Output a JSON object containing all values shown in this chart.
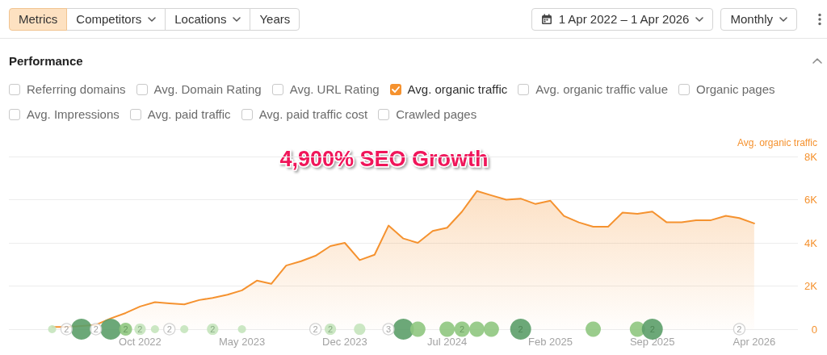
{
  "chart_data": [
    {
      "type": "other",
      "annotations": [
        "Metrics",
        "Competitors",
        "Locations",
        "Years",
        "1 Apr 2022 – 1 Apr 2026",
        "Monthly"
      ]
    },
    {
      "type": "area",
      "title": "Performance",
      "ylabel": "Avg. organic traffic",
      "annotations": [
        "4,900% SEO Growth",
        {
          "text": "2",
          "x": "2022-05",
          "y": 0
        },
        {
          "text": "2",
          "x": "2022-07",
          "y": 0
        },
        {
          "text": "2",
          "x": "2022-09",
          "y": 0
        },
        {
          "text": "2",
          "x": "2022-10",
          "y": 0
        },
        {
          "text": "2",
          "x": "2022-12",
          "y": 0
        },
        {
          "text": "2",
          "x": "2023-03",
          "y": 0
        },
        {
          "text": "2",
          "x": "2023-10",
          "y": 0
        },
        {
          "text": "2",
          "x": "2023-11",
          "y": 0
        },
        {
          "text": "3",
          "x": "2024-03",
          "y": 0
        },
        {
          "text": "2",
          "x": "2024-08",
          "y": 0
        },
        {
          "text": "2",
          "x": "2024-12",
          "y": 0
        },
        {
          "text": "2",
          "x": "2025-09",
          "y": 0
        },
        {
          "text": "2",
          "x": "2026-03",
          "y": 0
        }
      ],
      "x": [
        "2022-04",
        "2022-05",
        "2022-06",
        "2022-07",
        "2022-08",
        "2022-09",
        "2022-10",
        "2022-11",
        "2022-12",
        "2023-01",
        "2023-02",
        "2023-03",
        "2023-04",
        "2023-05",
        "2023-06",
        "2023-07",
        "2023-08",
        "2023-09",
        "2023-10",
        "2023-11",
        "2023-12",
        "2024-01",
        "2024-02",
        "2024-03",
        "2024-04",
        "2024-05",
        "2024-06",
        "2024-07",
        "2024-08",
        "2024-09",
        "2024-10",
        "2024-11",
        "2024-12",
        "2025-01",
        "2025-02",
        "2025-03",
        "2025-04",
        "2025-05",
        "2025-06",
        "2025-07",
        "2025-08",
        "2025-09",
        "2025-10",
        "2025-11",
        "2025-12",
        "2026-01",
        "2026-02",
        "2026-03",
        "2026-04"
      ],
      "series": [
        {
          "name": "Referring domains",
          "values": [
            null,
            null,
            null,
            null,
            null,
            null,
            null,
            null,
            null,
            null,
            null,
            null,
            null,
            null,
            null,
            null,
            null,
            null,
            null,
            null,
            null,
            null,
            null,
            null,
            null,
            null,
            null,
            null,
            null,
            null,
            null,
            null,
            null,
            null,
            null,
            null,
            null,
            null,
            null,
            null,
            null,
            null,
            null,
            null,
            null,
            null,
            null,
            null,
            null
          ]
        },
        {
          "name": "Avg. Domain Rating",
          "values": [
            null,
            null,
            null,
            null,
            null,
            null,
            null,
            null,
            null,
            null,
            null,
            null,
            null,
            null,
            null,
            null,
            null,
            null,
            null,
            null,
            null,
            null,
            null,
            null,
            null,
            null,
            null,
            null,
            null,
            null,
            null,
            null,
            null,
            null,
            null,
            null,
            null,
            null,
            null,
            null,
            null,
            null,
            null,
            null,
            null,
            null,
            null,
            null,
            null
          ]
        },
        {
          "name": "Avg. URL Rating",
          "values": [
            null,
            null,
            null,
            null,
            null,
            null,
            null,
            null,
            null,
            null,
            null,
            null,
            null,
            null,
            null,
            null,
            null,
            null,
            null,
            null,
            null,
            null,
            null,
            null,
            null,
            null,
            null,
            null,
            null,
            null,
            null,
            null,
            null,
            null,
            null,
            null,
            null,
            null,
            null,
            null,
            null,
            null,
            null,
            null,
            null,
            null,
            null,
            null,
            null
          ]
        },
        {
          "name": "Avg. organic traffic",
          "color": "#f5922f",
          "values": [
            100,
            100,
            150,
            200,
            500,
            750,
            1050,
            1250,
            1200,
            1150,
            1350,
            1450,
            1600,
            1800,
            2250,
            2100,
            2950,
            3150,
            3400,
            3850,
            4000,
            3200,
            3450,
            4800,
            4200,
            4000,
            4550,
            4700,
            5450,
            6400,
            6200,
            6000,
            6050,
            5800,
            5950,
            5250,
            4950,
            4750,
            4750,
            5400,
            5350,
            5450,
            4950,
            4950,
            5050,
            5050,
            5250,
            5150,
            4900
          ]
        },
        {
          "name": "Avg. organic traffic value",
          "values": [
            null,
            null,
            null,
            null,
            null,
            null,
            null,
            null,
            null,
            null,
            null,
            null,
            null,
            null,
            null,
            null,
            null,
            null,
            null,
            null,
            null,
            null,
            null,
            null,
            null,
            null,
            null,
            null,
            null,
            null,
            null,
            null,
            null,
            null,
            null,
            null,
            null,
            null,
            null,
            null,
            null,
            null,
            null,
            null,
            null,
            null,
            null,
            null,
            null
          ]
        },
        {
          "name": "Organic pages",
          "values": [
            null,
            null,
            null,
            null,
            null,
            null,
            null,
            null,
            null,
            null,
            null,
            null,
            null,
            null,
            null,
            null,
            null,
            null,
            null,
            null,
            null,
            null,
            null,
            null,
            null,
            null,
            null,
            null,
            null,
            null,
            null,
            null,
            null,
            null,
            null,
            null,
            null,
            null,
            null,
            null,
            null,
            null,
            null,
            null,
            null,
            null,
            null,
            null,
            null
          ]
        },
        {
          "name": "Avg. Impressions",
          "values": [
            null,
            null,
            null,
            null,
            null,
            null,
            null,
            null,
            null,
            null,
            null,
            null,
            null,
            null,
            null,
            null,
            null,
            null,
            null,
            null,
            null,
            null,
            null,
            null,
            null,
            null,
            null,
            null,
            null,
            null,
            null,
            null,
            null,
            null,
            null,
            null,
            null,
            null,
            null,
            null,
            null,
            null,
            null,
            null,
            null,
            null,
            null,
            null,
            null
          ]
        },
        {
          "name": "Avg. paid traffic",
          "values": [
            null,
            null,
            null,
            null,
            null,
            null,
            null,
            null,
            null,
            null,
            null,
            null,
            null,
            null,
            null,
            null,
            null,
            null,
            null,
            null,
            null,
            null,
            null,
            null,
            null,
            null,
            null,
            null,
            null,
            null,
            null,
            null,
            null,
            null,
            null,
            null,
            null,
            null,
            null,
            null,
            null,
            null,
            null,
            null,
            null,
            null,
            null,
            null,
            null
          ]
        },
        {
          "name": "Avg. paid traffic cost",
          "values": [
            null,
            null,
            null,
            null,
            null,
            null,
            null,
            null,
            null,
            null,
            null,
            null,
            null,
            null,
            null,
            null,
            null,
            null,
            null,
            null,
            null,
            null,
            null,
            null,
            null,
            null,
            null,
            null,
            null,
            null,
            null,
            null,
            null,
            null,
            null,
            null,
            null,
            null,
            null,
            null,
            null,
            null,
            null,
            null,
            null,
            null,
            null,
            null,
            null
          ]
        },
        {
          "name": "Crawled pages",
          "values": [
            null,
            null,
            null,
            null,
            null,
            null,
            null,
            null,
            null,
            null,
            null,
            null,
            null,
            null,
            null,
            null,
            null,
            null,
            null,
            null,
            null,
            null,
            null,
            null,
            null,
            null,
            null,
            null,
            null,
            null,
            null,
            null,
            null,
            null,
            null,
            null,
            null,
            null,
            null,
            null,
            null,
            null,
            null,
            null,
            null,
            null,
            null,
            null,
            null
          ]
        },
        {
          "type": "bubble",
          "x": [
            "2022-04",
            "2022-06",
            "2022-08",
            "2022-09",
            "2022-10",
            "2022-11",
            "2023-01",
            "2023-03",
            "2023-05",
            "2023-11",
            "2024-01",
            "2024-04",
            "2024-05",
            "2024-07",
            "2024-08",
            "2024-09",
            "2024-10",
            "2024-12",
            "2025-05",
            "2025-08",
            "2025-09"
          ],
          "values": [
            0,
            0,
            0,
            0,
            0,
            0,
            0,
            0,
            0,
            0,
            0,
            0,
            0,
            0,
            0,
            0,
            0,
            0,
            0,
            0,
            0
          ],
          "sizes": [
            0.15,
            1,
            1,
            0.38,
            0.3,
            0.15,
            0.15,
            0.3,
            0.15,
            0.3,
            0.3,
            1,
            0.53,
            0.53,
            0.53,
            0.53,
            0.53,
            1,
            0.53,
            0.53,
            1
          ],
          "colors": [
            "#c5e4bc",
            "#5c9e69",
            "#5c9e69",
            "#8fc77f",
            "#c5e4bc",
            "#c5e4bc",
            "#c5e4bc",
            "#c5e4bc",
            "#c5e4bc",
            "#c5e4bc",
            "#c5e4bc",
            "#5c9e69",
            "#8fc77f",
            "#8fc77f",
            "#8fc77f",
            "#8fc77f",
            "#8fc77f",
            "#5c9e69",
            "#8fc77f",
            "#8fc77f",
            "#5c9e69"
          ]
        }
      ],
      "xlim": [
        "2022-01",
        "2026-07"
      ],
      "xticks": [
        {
          "value": "2022-10",
          "label": "Oct 2022"
        },
        {
          "value": "2023-05",
          "label": "May 2023"
        },
        {
          "value": "2023-12",
          "label": "Dec 2023"
        },
        {
          "value": "2024-07",
          "label": "Jul 2024"
        },
        {
          "value": "2025-02",
          "label": "Feb 2025"
        },
        {
          "value": "2025-09",
          "label": "Sep 2025"
        },
        {
          "value": "2026-04",
          "label": "Apr 2026"
        }
      ],
      "ylim": [
        0,
        8000
      ],
      "yticks": [
        0,
        {
          "value": 2000,
          "label": "2K"
        },
        {
          "value": 4000,
          "label": "4K"
        },
        {
          "value": 6000,
          "label": "6K"
        },
        {
          "value": 8000,
          "label": "8K"
        }
      ],
      "grid": "y",
      "legend": "top left"
    }
  ]
}
